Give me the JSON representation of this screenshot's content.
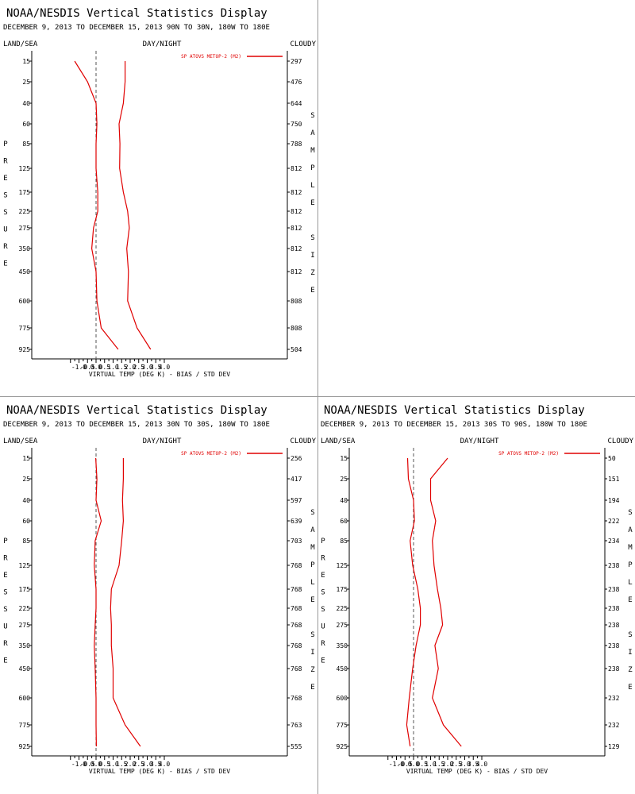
{
  "colors": {
    "series": "#e00000",
    "axis": "#000000",
    "divider": "#9a9a9a",
    "zero_line": "#555555"
  },
  "chart_data": [
    {
      "type": "line",
      "title": "NOAA/NESDIS Vertical Statistics Display",
      "subtitle": "DECEMBER 9, 2013 TO DECEMBER 15, 2013 90N TO 30N, 180W TO 180E",
      "corner_left": "LAND/SEA",
      "corner_center": "DAY/NIGHT",
      "corner_right": "CLOUDY",
      "xlabel": "VIRTUAL TEMP (DEG K) - BIAS / STD DEV",
      "ylabel": "PRESSURE",
      "y2label": "SAMPLE SIZE",
      "xlim": [
        -1.5,
        4.0
      ],
      "xticks": [
        "-1.0",
        "-0.5",
        "0.0",
        "0.5",
        "1.0",
        "1.5",
        "2.0",
        "2.5",
        "3.0",
        "3.5",
        "4.0"
      ],
      "pressure_levels": [
        "15",
        "25",
        "40",
        "60",
        "85",
        "125",
        "175",
        "225",
        "275",
        "350",
        "450",
        "600",
        "775",
        "925"
      ],
      "sample_size": [
        "297",
        "476",
        "644",
        "750",
        "788",
        "812",
        "812",
        "812",
        "812",
        "812",
        "812",
        "808",
        "808",
        "504"
      ],
      "series": [
        {
          "name": "SP ATOVS METOP-2 (M2)",
          "label": "bias",
          "values": [
            -1.25,
            -0.5,
            0.0,
            0.05,
            0.0,
            0.0,
            0.1,
            0.1,
            -0.15,
            -0.25,
            0.0,
            0.05,
            0.3,
            1.3
          ]
        },
        {
          "label": "std_dev",
          "values": [
            1.7,
            1.7,
            1.6,
            1.35,
            1.4,
            1.38,
            1.6,
            1.85,
            1.95,
            1.8,
            1.9,
            1.85,
            2.4,
            3.2
          ]
        }
      ]
    },
    {
      "type": "line",
      "title": "NOAA/NESDIS Vertical Statistics Display",
      "subtitle": "DECEMBER 9, 2013 TO DECEMBER 15, 2013 30N TO 30S, 180W TO 180E",
      "corner_left": "LAND/SEA",
      "corner_center": "DAY/NIGHT",
      "corner_right": "CLOUDY",
      "xlabel": "VIRTUAL TEMP (DEG K) - BIAS / STD DEV",
      "ylabel": "PRESSURE",
      "y2label": "SAMPLE SIZE",
      "xlim": [
        -1.5,
        4.0
      ],
      "xticks": [
        "-1.0",
        "-0.5",
        "0.0",
        "0.5",
        "1.0",
        "1.5",
        "2.0",
        "2.5",
        "3.0",
        "3.5",
        "4.0"
      ],
      "pressure_levels": [
        "15",
        "25",
        "40",
        "60",
        "85",
        "125",
        "175",
        "225",
        "275",
        "350",
        "450",
        "600",
        "775",
        "925"
      ],
      "sample_size": [
        "256",
        "417",
        "597",
        "639",
        "703",
        "768",
        "768",
        "768",
        "768",
        "768",
        "768",
        "768",
        "763",
        "555"
      ],
      "series": [
        {
          "name": "SP ATOVS METOP-2 (M2)",
          "label": "bias",
          "values": [
            -0.02,
            0.05,
            0.0,
            0.3,
            -0.05,
            -0.1,
            0.0,
            0.0,
            -0.05,
            -0.1,
            -0.05,
            0.0,
            0.0,
            0.02
          ]
        },
        {
          "label": "std_dev",
          "values": [
            1.6,
            1.6,
            1.55,
            1.6,
            1.5,
            1.35,
            0.9,
            0.85,
            0.9,
            0.9,
            1.0,
            1.0,
            1.7,
            2.6
          ]
        }
      ]
    },
    {
      "type": "line",
      "title": "NOAA/NESDIS Vertical Statistics Display",
      "subtitle": "DECEMBER 9, 2013 TO DECEMBER 15, 2013 30S TO 90S, 180W TO 180E",
      "corner_left": "LAND/SEA",
      "corner_center": "DAY/NIGHT",
      "corner_right": "CLOUDY",
      "xlabel": "VIRTUAL TEMP (DEG K) - BIAS / STD DEV",
      "ylabel": "PRESSURE",
      "y2label": "SAMPLE SIZE",
      "xlim": [
        -1.5,
        4.0
      ],
      "xticks": [
        "-1.0",
        "-0.5",
        "0.0",
        "0.5",
        "1.0",
        "1.5",
        "2.0",
        "2.5",
        "3.0",
        "3.5",
        "4.0"
      ],
      "pressure_levels": [
        "15",
        "25",
        "40",
        "60",
        "85",
        "125",
        "175",
        "225",
        "275",
        "350",
        "450",
        "600",
        "775",
        "925"
      ],
      "sample_size": [
        "50",
        "151",
        "194",
        "222",
        "234",
        "238",
        "238",
        "238",
        "238",
        "238",
        "238",
        "232",
        "232",
        "129"
      ],
      "series": [
        {
          "name": "SP ATOVS METOP-2 (M2)",
          "label": "bias",
          "values": [
            -0.35,
            -0.3,
            0.0,
            0.05,
            -0.2,
            -0.05,
            0.25,
            0.4,
            0.4,
            0.15,
            -0.05,
            -0.25,
            -0.4,
            -0.2
          ]
        },
        {
          "label": "std_dev",
          "values": [
            2.0,
            1.0,
            1.0,
            1.3,
            1.1,
            1.2,
            1.4,
            1.6,
            1.7,
            1.25,
            1.45,
            1.1,
            1.75,
            2.8
          ]
        }
      ]
    }
  ]
}
